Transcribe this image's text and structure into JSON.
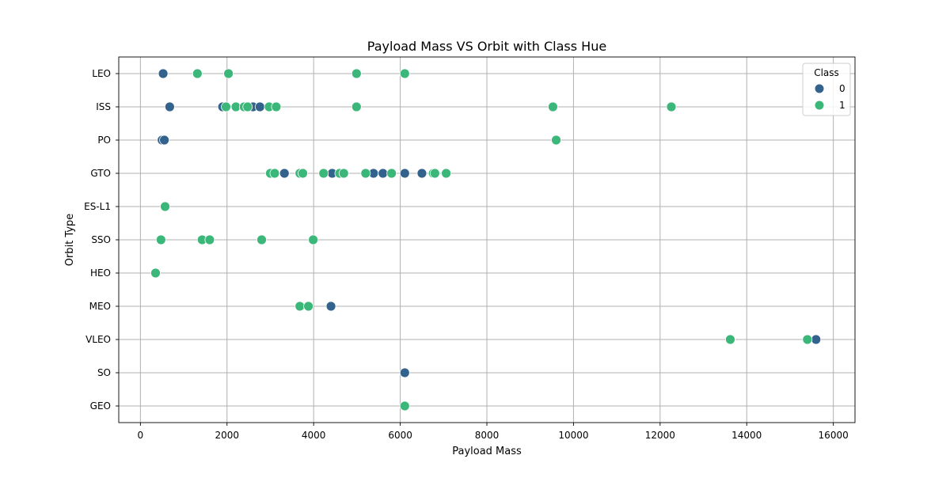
{
  "chart_data": {
    "type": "scatter",
    "title": "Payload Mass VS Orbit with Class Hue",
    "xlabel": "Payload Mass",
    "ylabel": "Orbit Type",
    "xlim": [
      -500,
      16500
    ],
    "x_ticks": [
      0,
      2000,
      4000,
      6000,
      8000,
      10000,
      12000,
      14000,
      16000
    ],
    "y_categories": [
      "LEO",
      "ISS",
      "PO",
      "GTO",
      "ES-L1",
      "SSO",
      "HEO",
      "MEO",
      "VLEO",
      "SO",
      "GEO"
    ],
    "grid": true,
    "legend": {
      "title": "Class",
      "position": "top-right"
    },
    "series": [
      {
        "name": "0",
        "color": "#33638d",
        "points": [
          {
            "x": 525,
            "y": "LEO"
          },
          {
            "x": 677,
            "y": "ISS"
          },
          {
            "x": 1898,
            "y": "ISS"
          },
          {
            "x": 2490,
            "y": "ISS"
          },
          {
            "x": 2600,
            "y": "ISS"
          },
          {
            "x": 2760,
            "y": "ISS"
          },
          {
            "x": 500,
            "y": "PO"
          },
          {
            "x": 553,
            "y": "PO"
          },
          {
            "x": 3325,
            "y": "GTO"
          },
          {
            "x": 4428,
            "y": "GTO"
          },
          {
            "x": 5383,
            "y": "GTO"
          },
          {
            "x": 5600,
            "y": "GTO"
          },
          {
            "x": 6104,
            "y": "GTO"
          },
          {
            "x": 6500,
            "y": "GTO"
          },
          {
            "x": 4400,
            "y": "MEO"
          },
          {
            "x": 15600,
            "y": "VLEO"
          },
          {
            "x": 6104,
            "y": "SO"
          }
        ]
      },
      {
        "name": "1",
        "color": "#3bb77a",
        "points": [
          {
            "x": 1316,
            "y": "LEO"
          },
          {
            "x": 2034,
            "y": "LEO"
          },
          {
            "x": 4990,
            "y": "LEO"
          },
          {
            "x": 6104,
            "y": "LEO"
          },
          {
            "x": 1977,
            "y": "ISS"
          },
          {
            "x": 2205,
            "y": "ISS"
          },
          {
            "x": 2395,
            "y": "ISS"
          },
          {
            "x": 2475,
            "y": "ISS"
          },
          {
            "x": 2972,
            "y": "ISS"
          },
          {
            "x": 3136,
            "y": "ISS"
          },
          {
            "x": 4990,
            "y": "ISS"
          },
          {
            "x": 9525,
            "y": "ISS"
          },
          {
            "x": 12259,
            "y": "ISS"
          },
          {
            "x": 9600,
            "y": "PO"
          },
          {
            "x": 3000,
            "y": "GTO"
          },
          {
            "x": 3100,
            "y": "GTO"
          },
          {
            "x": 3681,
            "y": "GTO"
          },
          {
            "x": 3750,
            "y": "GTO"
          },
          {
            "x": 4230,
            "y": "GTO"
          },
          {
            "x": 4600,
            "y": "GTO"
          },
          {
            "x": 4696,
            "y": "GTO"
          },
          {
            "x": 5200,
            "y": "GTO"
          },
          {
            "x": 5800,
            "y": "GTO"
          },
          {
            "x": 6761,
            "y": "GTO"
          },
          {
            "x": 6800,
            "y": "GTO"
          },
          {
            "x": 7060,
            "y": "GTO"
          },
          {
            "x": 570,
            "y": "ES-L1"
          },
          {
            "x": 475,
            "y": "SSO"
          },
          {
            "x": 1425,
            "y": "SSO"
          },
          {
            "x": 1600,
            "y": "SSO"
          },
          {
            "x": 2800,
            "y": "SSO"
          },
          {
            "x": 3990,
            "y": "SSO"
          },
          {
            "x": 350,
            "y": "HEO"
          },
          {
            "x": 3681,
            "y": "MEO"
          },
          {
            "x": 3880,
            "y": "MEO"
          },
          {
            "x": 13620,
            "y": "VLEO"
          },
          {
            "x": 15400,
            "y": "VLEO"
          },
          {
            "x": 6104,
            "y": "GEO"
          }
        ]
      }
    ]
  }
}
